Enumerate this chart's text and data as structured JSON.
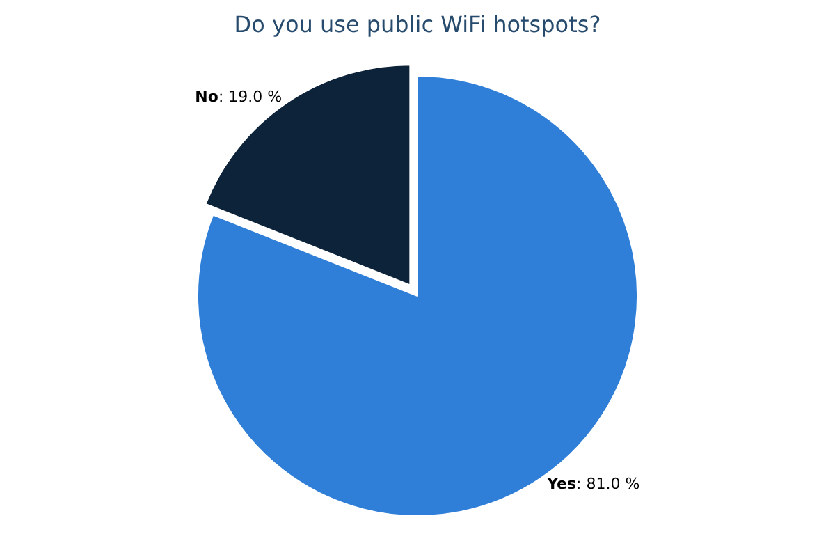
{
  "chart_data": {
    "type": "pie",
    "title": "Do you use public WiFi hotspots?",
    "categories": [
      "Yes",
      "No"
    ],
    "values": [
      81.0,
      19.0
    ],
    "value_labels": [
      ": 81.0 %",
      ": 19.0 %"
    ],
    "colors": [
      "#2f7ed8",
      "#0d233a"
    ],
    "legend": false
  }
}
